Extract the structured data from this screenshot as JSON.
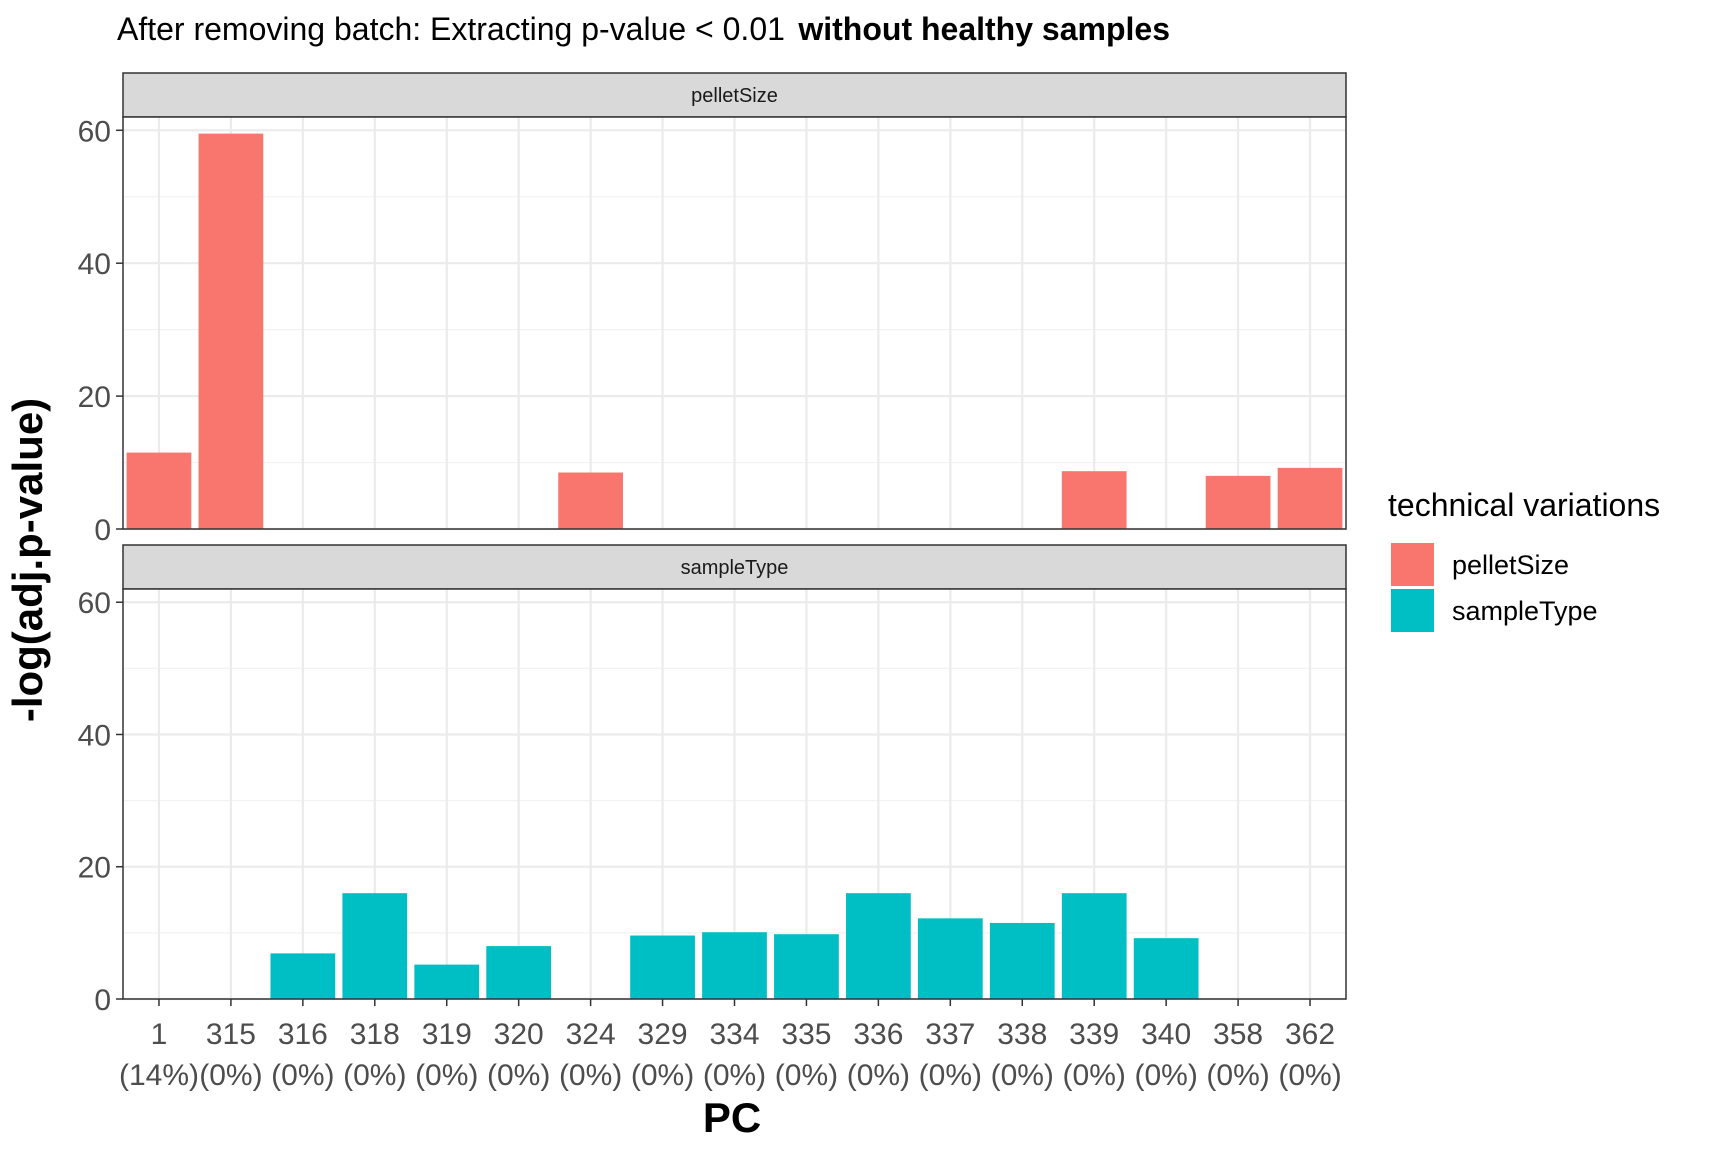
{
  "chart_data": {
    "type": "bar",
    "title": "After removing batch: Extracting p-value < 0.01",
    "title_bold": "without healthy samples",
    "xlabel": "PC",
    "ylabel": "-log(adj.p-value)",
    "ylim": [
      0,
      62
    ],
    "yticks": [
      0,
      20,
      40,
      60
    ],
    "grid": true,
    "legend_position": "right",
    "legend_title": "technical variations",
    "categories": [
      "1",
      "315",
      "316",
      "318",
      "319",
      "320",
      "324",
      "329",
      "334",
      "335",
      "336",
      "337",
      "338",
      "339",
      "340",
      "358",
      "362"
    ],
    "category_sublabels": [
      "(14%)",
      "(0%)",
      "(0%)",
      "(0%)",
      "(0%)",
      "(0%)",
      "(0%)",
      "(0%)",
      "(0%)",
      "(0%)",
      "(0%)",
      "(0%)",
      "(0%)",
      "(0%)",
      "(0%)",
      "(0%)",
      "(0%)"
    ],
    "series": [
      {
        "name": "pelletSize",
        "color": "#F8766D",
        "values": [
          11.5,
          59.5,
          null,
          null,
          null,
          null,
          8.5,
          null,
          null,
          null,
          null,
          null,
          null,
          8.7,
          null,
          8.0,
          9.2
        ]
      },
      {
        "name": "sampleType",
        "color": "#00BFC4",
        "values": [
          null,
          null,
          6.9,
          16.0,
          5.2,
          8.0,
          null,
          9.6,
          10.1,
          9.8,
          16.0,
          12.2,
          11.5,
          16.0,
          9.2,
          null,
          null
        ]
      }
    ]
  }
}
